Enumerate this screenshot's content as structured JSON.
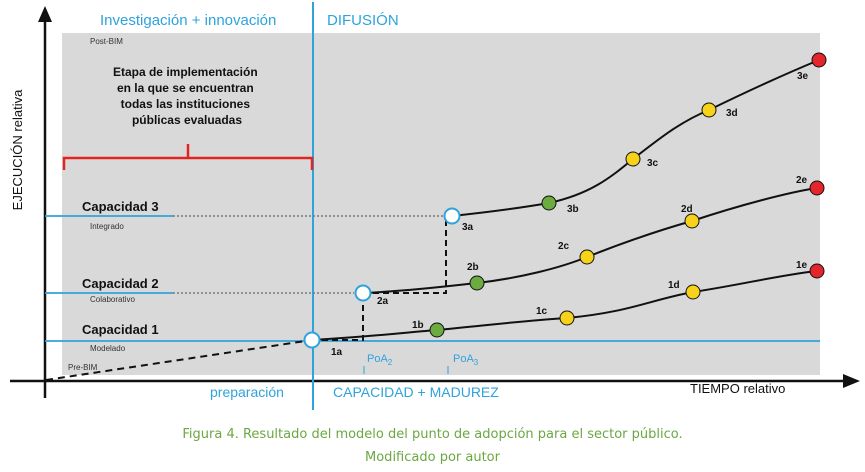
{
  "axes": {
    "y_label": "EJECUCIÓN relativa",
    "x_label": "TIEMPO relativo"
  },
  "headers": {
    "left": "Investigación + innovación",
    "right": "DIFUSIÓN"
  },
  "footer": {
    "left": "preparación",
    "right": "CAPACIDAD + MADUREZ"
  },
  "bands": {
    "top": "Post-BIM",
    "bottom": "Pre-BIM"
  },
  "note": {
    "lines": [
      "Etapa de implementación",
      "en la que se encuentran",
      "todas las instituciones",
      "públicas evaluadas"
    ]
  },
  "capacities": [
    {
      "title": "Capacidad 1",
      "subtitle": "Modelado"
    },
    {
      "title": "Capacidad 2",
      "subtitle": "Colaborativo"
    },
    {
      "title": "Capacidad 3",
      "subtitle": "Integrado"
    }
  ],
  "poa": [
    {
      "base": "PoA",
      "sub": "2"
    },
    {
      "base": "PoA",
      "sub": "3"
    }
  ],
  "points": [
    {
      "id": "1a",
      "status": "start"
    },
    {
      "id": "1b",
      "status": "green"
    },
    {
      "id": "1c",
      "status": "yellow"
    },
    {
      "id": "1d",
      "status": "yellow"
    },
    {
      "id": "1e",
      "status": "red"
    },
    {
      "id": "2a",
      "status": "start"
    },
    {
      "id": "2b",
      "status": "green"
    },
    {
      "id": "2c",
      "status": "yellow"
    },
    {
      "id": "2d",
      "status": "yellow"
    },
    {
      "id": "2e",
      "status": "red"
    },
    {
      "id": "3a",
      "status": "start"
    },
    {
      "id": "3b",
      "status": "green"
    },
    {
      "id": "3c",
      "status": "yellow"
    },
    {
      "id": "3d",
      "status": "yellow"
    },
    {
      "id": "3e",
      "status": "red"
    }
  ],
  "colors": {
    "accent_blue": "#2ea3dc",
    "bracket_red": "#e32222",
    "green": "#6bab3f",
    "yellow": "#f6d21a",
    "red": "#e3262b",
    "caption_green": "#6aa842",
    "background_gray": "#d9d9d9"
  },
  "caption": {
    "line1": "Figura 4. Resultado del modelo del punto de adopción para el sector público.",
    "line2": "Modificado por autor"
  }
}
